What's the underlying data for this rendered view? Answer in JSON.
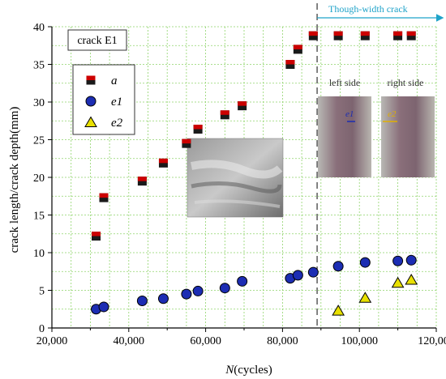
{
  "chart_data": {
    "type": "scatter",
    "xlabel_italic": "N",
    "xlabel_rest": "(cycles)",
    "ylabel": "crack length/crack depth(mm)",
    "xlim": [
      20000,
      120000
    ],
    "ylim": [
      0,
      40
    ],
    "x_ticks": [
      20000,
      40000,
      60000,
      80000,
      100000,
      120000
    ],
    "x_tick_labels": [
      "20,000",
      "40,000",
      "60,000",
      "80,000",
      "100,000",
      "120,000"
    ],
    "y_ticks": [
      0,
      5,
      10,
      15,
      20,
      25,
      30,
      35,
      40
    ],
    "grid": true,
    "legend_placement": "top-left",
    "specimen_label": "crack E1",
    "through_width_label": "Though-width crack",
    "through_width_x": 89000,
    "left_side_label": "left side",
    "right_side_label": "right side",
    "photo_left_marker": "e1",
    "photo_right_marker": "e2",
    "series": [
      {
        "name": "a",
        "marker": "square",
        "color": "#cc0000",
        "x": [
          31500,
          33500,
          43500,
          49000,
          55000,
          58000,
          65000,
          69500,
          82000,
          84000,
          88000,
          94500,
          101500,
          110000,
          113500
        ],
        "y": [
          12.2,
          17.3,
          19.5,
          21.9,
          24.5,
          26.4,
          28.3,
          29.5,
          35.0,
          37.0,
          38.8,
          38.8,
          38.8,
          38.8,
          38.8
        ]
      },
      {
        "name": "e1",
        "marker": "circle",
        "color": "#1c2db3",
        "x": [
          31500,
          33500,
          43500,
          49000,
          55000,
          58000,
          65000,
          69500,
          82000,
          84000,
          88000,
          94500,
          101500,
          110000,
          113500
        ],
        "y": [
          2.5,
          2.8,
          3.6,
          3.9,
          4.5,
          4.9,
          5.3,
          6.2,
          6.6,
          7.0,
          7.4,
          8.2,
          8.7,
          8.9,
          9.0
        ]
      },
      {
        "name": "e2",
        "marker": "triangle",
        "color": "#e8e000",
        "x": [
          94500,
          101500,
          110000,
          113500
        ],
        "y": [
          2.3,
          4.0,
          6.0,
          6.4
        ]
      }
    ]
  }
}
